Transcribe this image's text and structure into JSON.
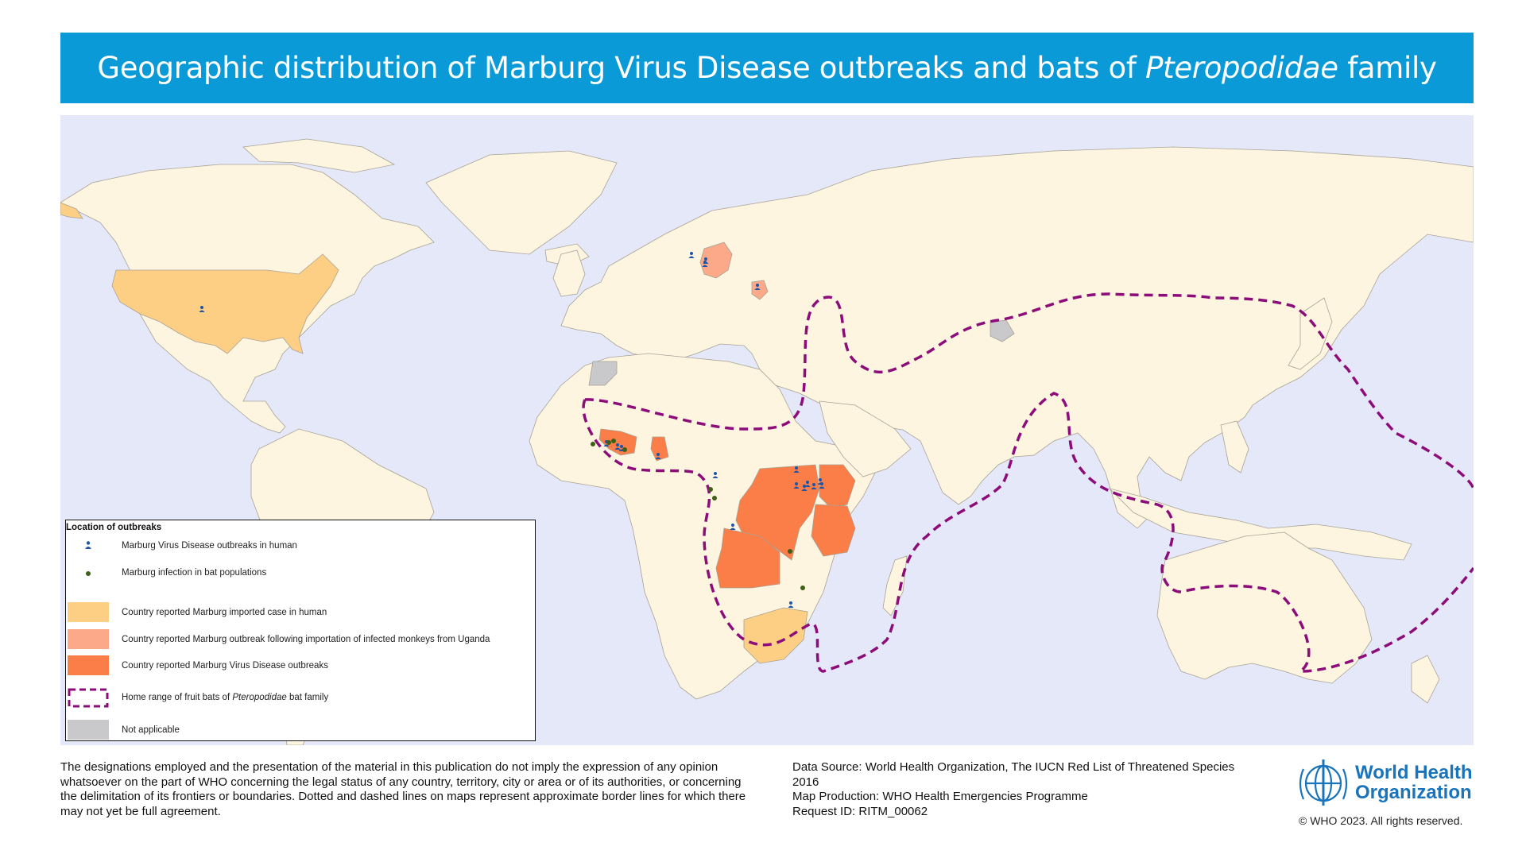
{
  "header": {
    "title_main": "Geographic distribution of Marburg Virus Disease outbreaks and bats of ",
    "title_italic": "Pteropodidae",
    "title_end": " family"
  },
  "colors": {
    "title_bar": "#0a9ad8",
    "ocean": "#e4e8f8",
    "land": "#fdf5df",
    "border": "#a8a296",
    "imported_case": "#fdcf85",
    "monkey_import": "#fca98a",
    "outbreak_country": "#fb7d47",
    "not_applicable": "#c9c9cb",
    "bat_range": "#8c0c7a",
    "human_marker": "#1c55a8",
    "bat_marker": "#3d5f17"
  },
  "legend": {
    "title": "Location of outbreaks",
    "items": [
      {
        "label": "Marburg Virus Disease outbreaks in human",
        "icon": "person-marker-icon"
      },
      {
        "label": "Marburg infection in bat populations",
        "icon": "green-dot-icon"
      },
      {
        "label": "Country reported Marburg imported case in human",
        "icon": "swatch-light-orange"
      },
      {
        "label": "Country reported Marburg outbreak following importation of infected monkeys from Uganda",
        "icon": "swatch-salmon"
      },
      {
        "label": "Country reported Marburg Virus Disease outbreaks",
        "icon": "swatch-orange"
      },
      {
        "label_prefix": "Home range of fruit bats of ",
        "label_italic": "Pteropodidae",
        "label_suffix": " bat family",
        "icon": "dashed-outline-icon"
      },
      {
        "label": "Not applicable",
        "icon": "swatch-grey"
      }
    ]
  },
  "map": {
    "imported_case_countries": [
      "United States",
      "South Africa"
    ],
    "monkey_import_countries": [
      "Germany",
      "Serbia"
    ],
    "outbreak_countries": [
      "Guinea",
      "Sierra Leone",
      "Liberia",
      "Ghana",
      "Angola",
      "Democratic Republic of the Congo",
      "Uganda",
      "Kenya",
      "Tanzania",
      "Equatorial Guinea"
    ],
    "not_applicable_regions": [
      "Western Sahara",
      "Kashmir"
    ]
  },
  "footer": {
    "disclaimer": "The designations employed and the presentation of the material in this publication do not imply the expression of any opinion whatsoever on the part of WHO concerning the legal status of any country, territory, city or area or of its authorities, or concerning the delimitation of its frontiers or boundaries. Dotted and dashed lines on maps represent approximate border lines for which there may not yet be full agreement.",
    "data_source": "Data Source: World Health Organization, The IUCN Red List of Threatened Species 2016",
    "map_production": "Map Production: WHO Health Emergencies Programme",
    "request_id": "Request ID: RITM_00062",
    "org_name_line1": "World Health",
    "org_name_line2": "Organization",
    "copyright": "© WHO 2023. All rights reserved."
  }
}
